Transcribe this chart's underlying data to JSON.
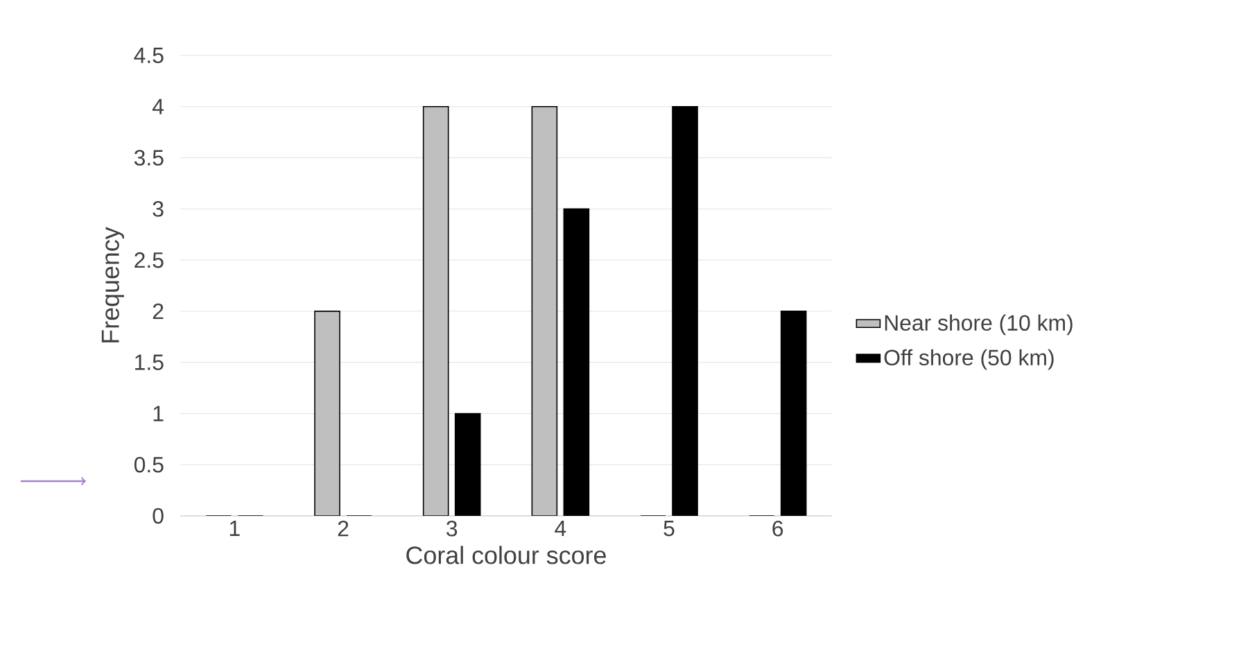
{
  "chart_data": {
    "type": "bar",
    "xlabel": "Coral colour score",
    "ylabel": "Frequency",
    "categories": [
      "1",
      "2",
      "3",
      "4",
      "5",
      "6"
    ],
    "series": [
      {
        "name": "Near shore (10 km)",
        "color": "#bfbfbf",
        "values": [
          0,
          2,
          4,
          4,
          0,
          0
        ]
      },
      {
        "name": "Off shore (50 km)",
        "color": "#000000",
        "values": [
          0,
          0,
          1,
          3,
          4,
          2
        ]
      }
    ],
    "ylim": [
      0,
      4.5
    ],
    "yticks": [
      0,
      0.5,
      1,
      1.5,
      2,
      2.5,
      3,
      3.5,
      4,
      4.5
    ],
    "grid": "y",
    "legend": "right"
  }
}
